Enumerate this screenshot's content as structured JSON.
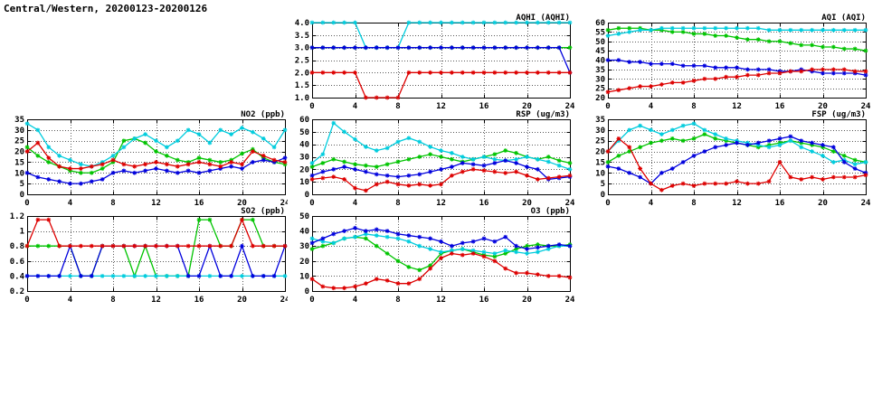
{
  "page_title": "Central/Western, 20200123-20200126",
  "series_colors": {
    "red": "#dd0000",
    "green": "#00c400",
    "blue": "#0000dd",
    "cyan": "#00ccdd"
  },
  "x_axis": {
    "min": 0,
    "max": 24,
    "ticks": [
      0,
      4,
      8,
      12,
      16,
      20,
      24
    ],
    "tick_labels": [
      "0",
      "4",
      "8",
      "12",
      "16",
      "20",
      "24"
    ]
  },
  "chart_data": [
    {
      "id": "aqhi",
      "type": "line",
      "title": "AQHI (AQHI)",
      "ylim": [
        1.0,
        4.0
      ],
      "yticks": [
        1.0,
        1.5,
        2.0,
        2.5,
        3.0,
        3.5,
        4.0
      ],
      "ytick_labels": [
        "1.0",
        "1.5",
        "2.0",
        "2.5",
        "3.0",
        "3.5",
        "4.0"
      ],
      "series": [
        {
          "name": "green",
          "values": [
            3,
            3,
            3,
            3,
            3,
            3,
            3,
            3,
            3,
            3,
            3,
            3,
            3,
            3,
            3,
            3,
            3,
            3,
            3,
            3,
            3,
            3,
            3,
            3,
            3
          ]
        },
        {
          "name": "cyan",
          "values": [
            4,
            4,
            4,
            4,
            4,
            3,
            3,
            3,
            3,
            4,
            4,
            4,
            4,
            4,
            4,
            4,
            4,
            4,
            4,
            4,
            4,
            4,
            4,
            4,
            4
          ]
        },
        {
          "name": "blue",
          "values": [
            3,
            3,
            3,
            3,
            3,
            3,
            3,
            3,
            3,
            3,
            3,
            3,
            3,
            3,
            3,
            3,
            3,
            3,
            3,
            3,
            3,
            3,
            3,
            3,
            2
          ]
        },
        {
          "name": "red",
          "values": [
            2,
            2,
            2,
            2,
            2,
            1,
            1,
            1,
            1,
            2,
            2,
            2,
            2,
            2,
            2,
            2,
            2,
            2,
            2,
            2,
            2,
            2,
            2,
            2,
            2
          ]
        }
      ]
    },
    {
      "id": "aqi",
      "type": "line",
      "title": "AQI (AQI)",
      "ylim": [
        20,
        60
      ],
      "yticks": [
        20,
        25,
        30,
        35,
        40,
        45,
        50,
        55,
        60
      ],
      "ytick_labels": [
        "20",
        "25",
        "30",
        "35",
        "40",
        "45",
        "50",
        "55",
        "60"
      ],
      "series": [
        {
          "name": "green",
          "values": [
            56,
            57,
            57,
            57,
            56,
            56,
            55,
            55,
            54,
            54,
            53,
            53,
            52,
            51,
            51,
            50,
            50,
            49,
            48,
            48,
            47,
            47,
            46,
            46,
            45
          ]
        },
        {
          "name": "cyan",
          "values": [
            53,
            54,
            55,
            56,
            56,
            57,
            57,
            57,
            57,
            57,
            57,
            57,
            57,
            57,
            57,
            56,
            56,
            56,
            56,
            56,
            56,
            56,
            56,
            56,
            56
          ]
        },
        {
          "name": "blue",
          "values": [
            40,
            40,
            39,
            39,
            38,
            38,
            38,
            37,
            37,
            37,
            36,
            36,
            36,
            35,
            35,
            35,
            34,
            34,
            35,
            34,
            33,
            33,
            33,
            33,
            32
          ]
        },
        {
          "name": "red",
          "values": [
            23,
            24,
            25,
            26,
            26,
            27,
            28,
            28,
            29,
            30,
            30,
            31,
            31,
            32,
            32,
            33,
            33,
            34,
            34,
            35,
            35,
            35,
            35,
            34,
            34
          ]
        }
      ]
    },
    {
      "id": "no2",
      "type": "line",
      "title": "NO2 (ppb)",
      "ylim": [
        0,
        35
      ],
      "yticks": [
        0,
        5,
        10,
        15,
        20,
        25,
        30,
        35
      ],
      "ytick_labels": [
        "0",
        "5",
        "10",
        "15",
        "20",
        "25",
        "30",
        "35"
      ],
      "series": [
        {
          "name": "green",
          "values": [
            22,
            18,
            15,
            13,
            11,
            10,
            10,
            12,
            15,
            25,
            26,
            24,
            20,
            18,
            16,
            15,
            17,
            16,
            15,
            16,
            19,
            21,
            17,
            15,
            14
          ]
        },
        {
          "name": "cyan",
          "values": [
            33,
            30,
            22,
            18,
            16,
            14,
            13,
            15,
            18,
            22,
            26,
            28,
            25,
            22,
            25,
            30,
            28,
            24,
            30,
            28,
            31,
            29,
            26,
            22,
            30
          ]
        },
        {
          "name": "blue",
          "values": [
            10,
            8,
            7,
            6,
            5,
            5,
            6,
            7,
            10,
            11,
            10,
            11,
            12,
            11,
            10,
            11,
            10,
            11,
            12,
            13,
            12,
            15,
            16,
            15,
            17
          ]
        },
        {
          "name": "red",
          "values": [
            20,
            24,
            17,
            13,
            12,
            12,
            13,
            14,
            16,
            14,
            13,
            14,
            15,
            14,
            13,
            14,
            15,
            14,
            13,
            15,
            14,
            20,
            18,
            16,
            15
          ]
        }
      ]
    },
    {
      "id": "rsp",
      "type": "line",
      "title": "RSP (ug/m3)",
      "ylim": [
        0,
        60
      ],
      "yticks": [
        0,
        10,
        20,
        30,
        40,
        50,
        60
      ],
      "ytick_labels": [
        "0",
        "10",
        "20",
        "30",
        "40",
        "50",
        "60"
      ],
      "series": [
        {
          "name": "green",
          "values": [
            22,
            25,
            28,
            26,
            24,
            23,
            22,
            24,
            26,
            28,
            30,
            32,
            30,
            28,
            26,
            28,
            30,
            32,
            35,
            33,
            30,
            28,
            30,
            27,
            25
          ]
        },
        {
          "name": "cyan",
          "values": [
            25,
            32,
            57,
            50,
            44,
            38,
            35,
            37,
            42,
            45,
            42,
            38,
            35,
            33,
            30,
            28,
            30,
            28,
            27,
            28,
            30,
            28,
            26,
            23,
            20
          ]
        },
        {
          "name": "blue",
          "values": [
            15,
            18,
            20,
            22,
            20,
            18,
            16,
            15,
            14,
            15,
            16,
            18,
            20,
            22,
            25,
            24,
            23,
            25,
            27,
            25,
            22,
            20,
            12,
            13,
            14
          ]
        },
        {
          "name": "red",
          "values": [
            12,
            13,
            14,
            12,
            5,
            3,
            8,
            10,
            8,
            7,
            8,
            7,
            8,
            15,
            18,
            20,
            19,
            18,
            17,
            18,
            15,
            12,
            13,
            14,
            15
          ]
        }
      ]
    },
    {
      "id": "fsp",
      "type": "line",
      "title": "FSP (ug/m3)",
      "ylim": [
        0,
        35
      ],
      "yticks": [
        0,
        5,
        10,
        15,
        20,
        25,
        30,
        35
      ],
      "ytick_labels": [
        "0",
        "5",
        "10",
        "15",
        "20",
        "25",
        "30",
        "35"
      ],
      "series": [
        {
          "name": "green",
          "values": [
            15,
            18,
            20,
            22,
            24,
            25,
            26,
            25,
            26,
            28,
            26,
            25,
            24,
            23,
            22,
            23,
            24,
            25,
            24,
            23,
            22,
            20,
            18,
            16,
            15
          ]
        },
        {
          "name": "cyan",
          "values": [
            20,
            25,
            30,
            32,
            30,
            28,
            30,
            32,
            33,
            30,
            28,
            26,
            25,
            24,
            23,
            22,
            23,
            25,
            22,
            20,
            18,
            15,
            16,
            14,
            15
          ]
        },
        {
          "name": "blue",
          "values": [
            13,
            12,
            10,
            8,
            5,
            10,
            12,
            15,
            18,
            20,
            22,
            23,
            24,
            23,
            24,
            25,
            26,
            27,
            25,
            24,
            23,
            22,
            15,
            12,
            10
          ]
        },
        {
          "name": "red",
          "values": [
            20,
            26,
            22,
            12,
            5,
            2,
            4,
            5,
            4,
            5,
            5,
            5,
            6,
            5,
            5,
            6,
            15,
            8,
            7,
            8,
            7,
            8,
            8,
            8,
            9
          ]
        }
      ]
    },
    {
      "id": "so2",
      "type": "line",
      "title": "SO2 (ppb)",
      "ylim": [
        0.2,
        1.2
      ],
      "yticks": [
        0.2,
        0.4,
        0.6,
        0.8,
        1.0,
        1.2
      ],
      "ytick_labels": [
        "0.2",
        "0.4",
        "0.6",
        "0.8",
        "1",
        "1.2"
      ],
      "series": [
        {
          "name": "green",
          "values": [
            0.8,
            0.8,
            0.8,
            0.8,
            0.8,
            0.4,
            0.4,
            0.8,
            0.8,
            0.8,
            0.4,
            0.8,
            0.4,
            0.4,
            0.4,
            0.4,
            1.15,
            1.15,
            0.8,
            0.8,
            1.15,
            1.15,
            0.8,
            0.8,
            0.8
          ]
        },
        {
          "name": "cyan",
          "values": [
            0.4,
            0.4,
            0.4,
            0.4,
            0.4,
            0.4,
            0.4,
            0.4,
            0.4,
            0.4,
            0.4,
            0.4,
            0.4,
            0.4,
            0.4,
            0.4,
            0.4,
            0.4,
            0.4,
            0.4,
            0.4,
            0.4,
            0.4,
            0.4,
            0.4
          ]
        },
        {
          "name": "blue",
          "values": [
            0.4,
            0.4,
            0.4,
            0.4,
            0.8,
            0.4,
            0.4,
            0.8,
            0.8,
            0.8,
            0.8,
            0.8,
            0.8,
            0.8,
            0.8,
            0.4,
            0.4,
            0.8,
            0.4,
            0.4,
            0.8,
            0.4,
            0.4,
            0.4,
            0.8
          ]
        },
        {
          "name": "red",
          "values": [
            0.8,
            1.15,
            1.15,
            0.8,
            0.8,
            0.8,
            0.8,
            0.8,
            0.8,
            0.8,
            0.8,
            0.8,
            0.8,
            0.8,
            0.8,
            0.8,
            0.8,
            0.8,
            0.8,
            0.8,
            1.15,
            0.8,
            0.8,
            0.8,
            0.8
          ]
        }
      ]
    },
    {
      "id": "o3",
      "type": "line",
      "title": "O3 (ppb)",
      "ylim": [
        0,
        50
      ],
      "yticks": [
        0,
        10,
        20,
        30,
        40,
        50
      ],
      "ytick_labels": [
        "0",
        "10",
        "20",
        "30",
        "40",
        "50"
      ],
      "series": [
        {
          "name": "green",
          "values": [
            28,
            30,
            32,
            35,
            36,
            35,
            30,
            25,
            20,
            16,
            14,
            17,
            25,
            27,
            28,
            26,
            24,
            23,
            25,
            28,
            30,
            31,
            30,
            30,
            31
          ]
        },
        {
          "name": "cyan",
          "values": [
            35,
            33,
            32,
            35,
            36,
            38,
            37,
            36,
            35,
            33,
            30,
            28,
            26,
            27,
            28,
            27,
            26,
            25,
            27,
            26,
            25,
            26,
            28,
            30,
            30
          ]
        },
        {
          "name": "blue",
          "values": [
            32,
            35,
            38,
            40,
            42,
            40,
            41,
            40,
            38,
            37,
            36,
            35,
            33,
            30,
            32,
            33,
            35,
            33,
            36,
            30,
            28,
            29,
            30,
            31,
            30
          ]
        },
        {
          "name": "red",
          "values": [
            8,
            3,
            2,
            2,
            3,
            5,
            8,
            7,
            5,
            5,
            8,
            15,
            22,
            25,
            24,
            25,
            23,
            20,
            15,
            12,
            12,
            11,
            10,
            10,
            9
          ]
        }
      ]
    }
  ]
}
